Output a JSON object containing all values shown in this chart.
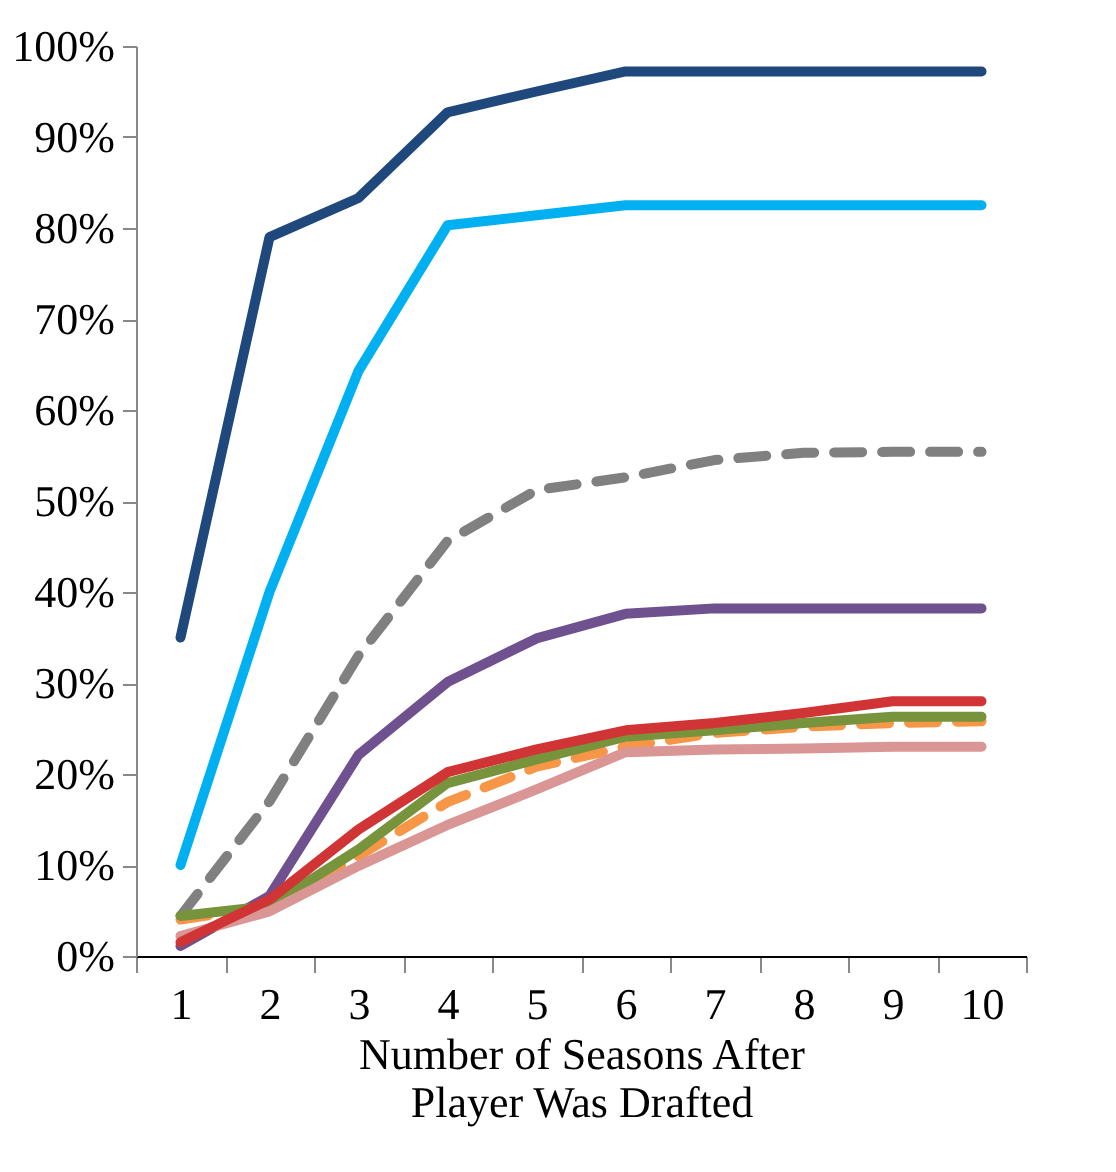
{
  "chart_data": {
    "type": "line",
    "xlabel": "Number of Seasons After\nPlayer Was Drafted",
    "categories": [
      "1",
      "2",
      "3",
      "4",
      "5",
      "6",
      "7",
      "8",
      "9",
      "10"
    ],
    "series": [
      {
        "color": "#1f497d",
        "line_style": "solid",
        "values": [
          35,
          79,
          83.3,
          92.7,
          95,
          97.2,
          97.2,
          97.2,
          97.2,
          97.2
        ]
      },
      {
        "color": "#00b0f0",
        "line_style": "solid",
        "values": [
          10,
          40,
          64.3,
          80.3,
          81.4,
          82.5,
          82.5,
          82.5,
          82.5,
          82.5
        ]
      },
      {
        "color": "#808080",
        "line_style": "dashed",
        "values": [
          4.4,
          17,
          33,
          45.6,
          51.2,
          52.6,
          54.5,
          55.3,
          55.4,
          55.4
        ]
      },
      {
        "color": "#6f5190",
        "line_style": "solid",
        "values": [
          1.1,
          6.6,
          22.1,
          30.1,
          34.9,
          37.6,
          38.2,
          38.2,
          38.2,
          38.2
        ]
      },
      {
        "color": "#f79646",
        "line_style": "dashed",
        "values": [
          4,
          5.5,
          11,
          16.9,
          20.8,
          23,
          24.5,
          25.2,
          25.6,
          25.8
        ]
      },
      {
        "color": "#77933c",
        "line_style": "solid",
        "values": [
          4.4,
          5.5,
          11.7,
          19,
          21.6,
          24.1,
          24.8,
          25.6,
          26.3,
          26.3
        ]
      },
      {
        "color": "#d99694",
        "line_style": "solid",
        "values": [
          2.2,
          4.9,
          9.9,
          14.4,
          18.3,
          22.4,
          22.7,
          22.8,
          23,
          23
        ]
      },
      {
        "color": "#d03434",
        "line_style": "solid",
        "values": [
          1.5,
          6.2,
          13.9,
          20.2,
          22.7,
          24.8,
          25.6,
          26.7,
          28,
          28
        ]
      }
    ],
    "ylim": [
      0,
      100
    ],
    "yticks": [
      {
        "value": 0,
        "label": "0%"
      },
      {
        "value": 10,
        "label": "10%"
      },
      {
        "value": 20,
        "label": "20%"
      },
      {
        "value": 30,
        "label": "30%"
      },
      {
        "value": 40,
        "label": "40%"
      },
      {
        "value": 50,
        "label": "50%"
      },
      {
        "value": 60,
        "label": "60%"
      },
      {
        "value": 70,
        "label": "70%"
      },
      {
        "value": 80,
        "label": "80%"
      },
      {
        "value": 90,
        "label": "90%"
      },
      {
        "value": 100,
        "label": "100%"
      }
    ],
    "grid": false
  }
}
